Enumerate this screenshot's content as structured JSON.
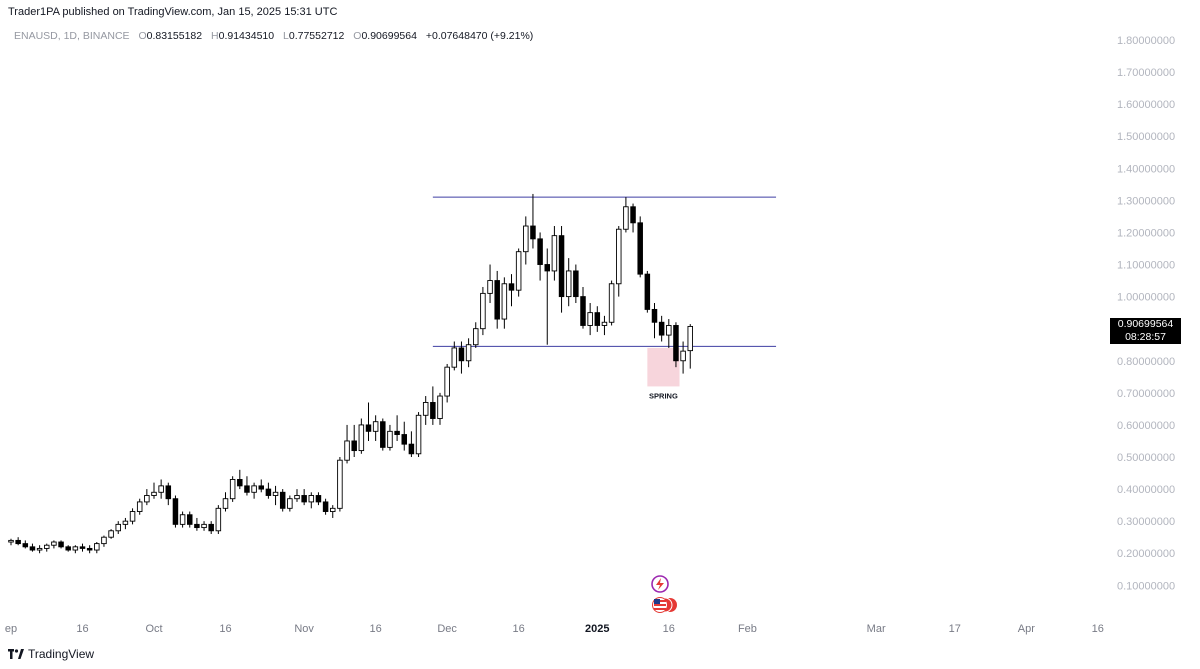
{
  "header": {
    "published": "Trader1PA published on TradingView.com, Jan 15, 2025 15:31 UTC"
  },
  "legend": {
    "symbol": "ENAUSD, 1D, BINANCE",
    "o_label": "O",
    "o_value": "0.83155182",
    "h_label": "H",
    "h_value": "0.91434510",
    "l_label": "L",
    "l_value": "0.77552712",
    "c_label": "O",
    "c_value": "0.90699564",
    "change": "+0.07648470 (+9.21%)"
  },
  "price_tag": {
    "price": "0.90699564",
    "countdown": "08:28:57"
  },
  "annotation": {
    "label": "SPRING"
  },
  "footer": {
    "brand": "TradingView"
  },
  "colors": {
    "up": "#ffffff",
    "down": "#000000",
    "level_line": "#3f3fa3",
    "spring_box": "#f7d5dc"
  },
  "chart_data": {
    "type": "candlestick",
    "symbol": "ENAUSD",
    "interval": "1D",
    "exchange": "BINANCE",
    "y_ticks": [
      0.1,
      0.2,
      0.3,
      0.4,
      0.5,
      0.6,
      0.7,
      0.8,
      0.9,
      1.0,
      1.1,
      1.2,
      1.3,
      1.4,
      1.5,
      1.6,
      1.7,
      1.8
    ],
    "y_tick_labels": [
      "0.10000000",
      "0.20000000",
      "0.30000000",
      "0.40000000",
      "0.50000000",
      "0.60000000",
      "0.70000000",
      "0.80000000",
      "0.90000000",
      "1.00000000",
      "1.10000000",
      "1.20000000",
      "1.30000000",
      "1.40000000",
      "1.50000000",
      "1.60000000",
      "1.70000000",
      "1.80000000"
    ],
    "x_ticks": [
      {
        "label": "ep",
        "day": 0,
        "bold": false
      },
      {
        "label": "16",
        "day": 10,
        "bold": false
      },
      {
        "label": "Oct",
        "day": 20,
        "bold": false
      },
      {
        "label": "16",
        "day": 30,
        "bold": false
      },
      {
        "label": "Nov",
        "day": 41,
        "bold": false
      },
      {
        "label": "16",
        "day": 51,
        "bold": false
      },
      {
        "label": "Dec",
        "day": 61,
        "bold": false
      },
      {
        "label": "16",
        "day": 71,
        "bold": false
      },
      {
        "label": "2025",
        "day": 82,
        "bold": true
      },
      {
        "label": "16",
        "day": 92,
        "bold": false
      },
      {
        "label": "Feb",
        "day": 103,
        "bold": false
      },
      {
        "label": "Mar",
        "day": 121,
        "bold": false
      },
      {
        "label": "17",
        "day": 132,
        "bold": false
      },
      {
        "label": "Apr",
        "day": 142,
        "bold": false
      },
      {
        "label": "16",
        "day": 152,
        "bold": false
      }
    ],
    "levels": [
      {
        "name": "resistance",
        "value": 1.31,
        "from_day": 59,
        "to_day": 107
      },
      {
        "name": "support",
        "value": 0.845,
        "from_day": 59,
        "to_day": 107
      }
    ],
    "spring_box": {
      "from_day": 89,
      "to_day": 93.5,
      "low": 0.72,
      "high": 0.84
    },
    "last": {
      "open": 0.83155182,
      "high": 0.9143451,
      "low": 0.77552712,
      "close": 0.90699564,
      "change": 0.0764847,
      "change_pct": 9.21
    },
    "candles": [
      [
        0.235,
        0.245,
        0.225,
        0.24
      ],
      [
        0.24,
        0.25,
        0.225,
        0.23
      ],
      [
        0.23,
        0.24,
        0.215,
        0.22
      ],
      [
        0.22,
        0.23,
        0.205,
        0.21
      ],
      [
        0.21,
        0.225,
        0.2,
        0.215
      ],
      [
        0.215,
        0.23,
        0.205,
        0.225
      ],
      [
        0.225,
        0.24,
        0.215,
        0.235
      ],
      [
        0.235,
        0.24,
        0.215,
        0.22
      ],
      [
        0.22,
        0.225,
        0.205,
        0.21
      ],
      [
        0.21,
        0.225,
        0.2,
        0.22
      ],
      [
        0.22,
        0.23,
        0.205,
        0.215
      ],
      [
        0.215,
        0.225,
        0.2,
        0.21
      ],
      [
        0.21,
        0.235,
        0.2,
        0.23
      ],
      [
        0.23,
        0.255,
        0.22,
        0.25
      ],
      [
        0.25,
        0.275,
        0.245,
        0.27
      ],
      [
        0.27,
        0.3,
        0.26,
        0.29
      ],
      [
        0.29,
        0.31,
        0.275,
        0.3
      ],
      [
        0.3,
        0.34,
        0.29,
        0.33
      ],
      [
        0.33,
        0.37,
        0.32,
        0.36
      ],
      [
        0.36,
        0.4,
        0.35,
        0.38
      ],
      [
        0.38,
        0.42,
        0.37,
        0.39
      ],
      [
        0.39,
        0.43,
        0.37,
        0.41
      ],
      [
        0.41,
        0.42,
        0.35,
        0.37
      ],
      [
        0.37,
        0.38,
        0.28,
        0.29
      ],
      [
        0.29,
        0.33,
        0.28,
        0.32
      ],
      [
        0.32,
        0.33,
        0.28,
        0.29
      ],
      [
        0.29,
        0.31,
        0.27,
        0.28
      ],
      [
        0.28,
        0.3,
        0.27,
        0.29
      ],
      [
        0.29,
        0.3,
        0.26,
        0.27
      ],
      [
        0.27,
        0.35,
        0.26,
        0.34
      ],
      [
        0.34,
        0.39,
        0.33,
        0.37
      ],
      [
        0.37,
        0.44,
        0.36,
        0.43
      ],
      [
        0.43,
        0.46,
        0.4,
        0.41
      ],
      [
        0.41,
        0.44,
        0.38,
        0.39
      ],
      [
        0.39,
        0.42,
        0.37,
        0.41
      ],
      [
        0.41,
        0.43,
        0.39,
        0.4
      ],
      [
        0.4,
        0.42,
        0.37,
        0.38
      ],
      [
        0.38,
        0.41,
        0.35,
        0.39
      ],
      [
        0.39,
        0.4,
        0.33,
        0.34
      ],
      [
        0.34,
        0.38,
        0.33,
        0.37
      ],
      [
        0.37,
        0.4,
        0.36,
        0.38
      ],
      [
        0.38,
        0.4,
        0.35,
        0.36
      ],
      [
        0.36,
        0.39,
        0.34,
        0.38
      ],
      [
        0.38,
        0.39,
        0.35,
        0.36
      ],
      [
        0.36,
        0.37,
        0.32,
        0.33
      ],
      [
        0.33,
        0.35,
        0.31,
        0.34
      ],
      [
        0.34,
        0.5,
        0.33,
        0.49
      ],
      [
        0.49,
        0.6,
        0.48,
        0.55
      ],
      [
        0.55,
        0.6,
        0.5,
        0.52
      ],
      [
        0.52,
        0.62,
        0.51,
        0.6
      ],
      [
        0.6,
        0.67,
        0.55,
        0.58
      ],
      [
        0.58,
        0.63,
        0.55,
        0.61
      ],
      [
        0.61,
        0.62,
        0.52,
        0.53
      ],
      [
        0.53,
        0.6,
        0.52,
        0.58
      ],
      [
        0.58,
        0.63,
        0.55,
        0.57
      ],
      [
        0.57,
        0.61,
        0.52,
        0.54
      ],
      [
        0.54,
        0.58,
        0.5,
        0.51
      ],
      [
        0.51,
        0.64,
        0.5,
        0.63
      ],
      [
        0.63,
        0.69,
        0.6,
        0.67
      ],
      [
        0.67,
        0.72,
        0.6,
        0.62
      ],
      [
        0.62,
        0.7,
        0.6,
        0.69
      ],
      [
        0.69,
        0.79,
        0.67,
        0.78
      ],
      [
        0.78,
        0.86,
        0.77,
        0.84
      ],
      [
        0.84,
        0.86,
        0.76,
        0.8
      ],
      [
        0.8,
        0.87,
        0.78,
        0.85
      ],
      [
        0.85,
        0.92,
        0.84,
        0.9
      ],
      [
        0.9,
        1.03,
        0.88,
        1.01
      ],
      [
        1.01,
        1.1,
        0.98,
        1.05
      ],
      [
        1.05,
        1.08,
        0.9,
        0.93
      ],
      [
        0.93,
        1.06,
        0.9,
        1.04
      ],
      [
        1.04,
        1.07,
        0.97,
        1.02
      ],
      [
        1.02,
        1.15,
        1.0,
        1.14
      ],
      [
        1.14,
        1.25,
        1.1,
        1.22
      ],
      [
        1.22,
        1.32,
        1.15,
        1.18
      ],
      [
        1.18,
        1.2,
        1.05,
        1.1
      ],
      [
        1.1,
        1.15,
        0.85,
        1.08
      ],
      [
        1.08,
        1.22,
        1.05,
        1.19
      ],
      [
        1.19,
        1.22,
        0.95,
        1.0
      ],
      [
        1.0,
        1.12,
        0.97,
        1.08
      ],
      [
        1.08,
        1.1,
        0.98,
        1.0
      ],
      [
        1.0,
        1.03,
        0.9,
        0.91
      ],
      [
        0.91,
        0.98,
        0.88,
        0.95
      ],
      [
        0.95,
        0.97,
        0.89,
        0.91
      ],
      [
        0.91,
        0.94,
        0.88,
        0.92
      ],
      [
        0.92,
        1.05,
        0.91,
        1.04
      ],
      [
        1.04,
        1.22,
        1.0,
        1.21
      ],
      [
        1.21,
        1.31,
        1.2,
        1.28
      ],
      [
        1.28,
        1.29,
        1.2,
        1.23
      ],
      [
        1.23,
        1.25,
        1.06,
        1.07
      ],
      [
        1.07,
        1.08,
        0.95,
        0.96
      ],
      [
        0.96,
        0.98,
        0.87,
        0.92
      ],
      [
        0.92,
        0.94,
        0.86,
        0.88
      ],
      [
        0.88,
        0.93,
        0.84,
        0.91
      ],
      [
        0.91,
        0.92,
        0.78,
        0.8
      ],
      [
        0.8,
        0.86,
        0.76,
        0.83
      ],
      [
        0.83155182,
        0.9143451,
        0.77552712,
        0.90699564
      ]
    ]
  }
}
